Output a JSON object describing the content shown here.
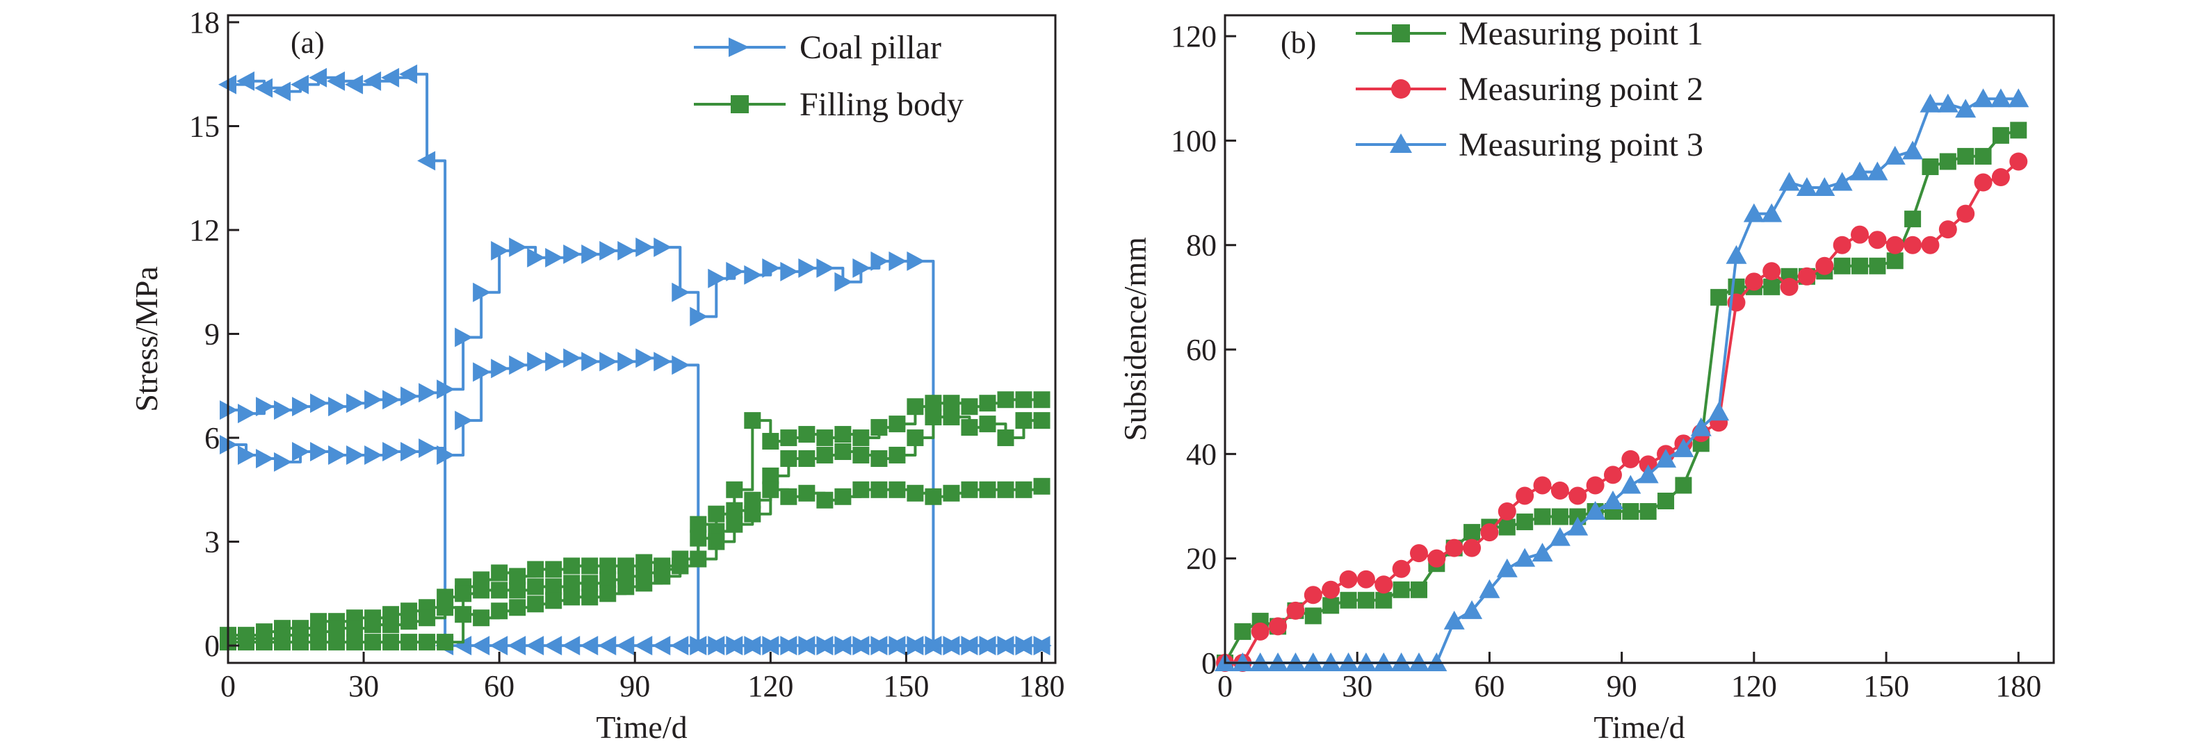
{
  "chart_data": [
    {
      "type": "line",
      "panel_label": "(a)",
      "xlabel": "Time/d",
      "ylabel": "Stress/MPa",
      "xlim": [
        0,
        183
      ],
      "ylim": [
        -0.5,
        18.2
      ],
      "xticks": [
        0,
        30,
        60,
        90,
        120,
        150,
        180
      ],
      "yticks": [
        0,
        3,
        6,
        9,
        12,
        15,
        18
      ],
      "legend_position": "top-right",
      "legend": [
        {
          "label": "Coal pillar",
          "color": "#4a8fd6",
          "marker": "triangle-right"
        },
        {
          "label": "Filling body",
          "color": "#3a8f3a",
          "marker": "square"
        }
      ],
      "series": [
        {
          "group": "Coal pillar",
          "color": "#4a8fd6",
          "marker": "triangle-left",
          "step": true,
          "x": [
            0,
            4,
            8,
            12,
            16,
            20,
            24,
            28,
            32,
            36,
            40,
            44,
            48,
            52,
            56,
            60,
            64,
            68,
            72,
            76,
            80,
            84,
            88,
            92,
            96,
            100,
            104,
            108,
            112,
            116,
            120,
            124,
            128,
            132,
            136,
            140,
            144,
            148,
            152,
            156,
            160,
            164,
            168,
            172,
            176,
            180
          ],
          "y": [
            16.2,
            16.3,
            16.1,
            16.0,
            16.2,
            16.4,
            16.3,
            16.2,
            16.3,
            16.4,
            16.5,
            14.0,
            0,
            0,
            0,
            0,
            0,
            0,
            0,
            0,
            0,
            0,
            0,
            0,
            0,
            0,
            0,
            0,
            0,
            0,
            0,
            0,
            0,
            0,
            0,
            0,
            0,
            0,
            0,
            0,
            0,
            0,
            0,
            0,
            0,
            0
          ]
        },
        {
          "group": "Coal pillar",
          "color": "#4a8fd6",
          "marker": "triangle-right",
          "step": true,
          "x": [
            0,
            4,
            8,
            12,
            16,
            20,
            24,
            28,
            32,
            36,
            40,
            44,
            48,
            52,
            56,
            60,
            64,
            68,
            72,
            76,
            80,
            84,
            88,
            92,
            96,
            100,
            104,
            108,
            112,
            116,
            120,
            124,
            128,
            132,
            136,
            140,
            144,
            148,
            152,
            156,
            160,
            164,
            168,
            172,
            176,
            180
          ],
          "y": [
            6.8,
            6.7,
            6.9,
            6.8,
            6.9,
            7.0,
            6.9,
            7.0,
            7.1,
            7.1,
            7.2,
            7.3,
            7.4,
            8.9,
            10.2,
            11.4,
            11.5,
            11.2,
            11.2,
            11.3,
            11.3,
            11.4,
            11.4,
            11.5,
            11.5,
            10.2,
            9.5,
            10.6,
            10.8,
            10.7,
            10.9,
            10.8,
            10.9,
            10.9,
            10.5,
            10.9,
            11.1,
            11.1,
            11.1,
            0,
            0,
            0,
            0,
            0,
            0,
            0
          ]
        },
        {
          "group": "Coal pillar",
          "color": "#4a8fd6",
          "marker": "triangle-right",
          "step": true,
          "x": [
            0,
            4,
            8,
            12,
            16,
            20,
            24,
            28,
            32,
            36,
            40,
            44,
            48,
            52,
            56,
            60,
            64,
            68,
            72,
            76,
            80,
            84,
            88,
            92,
            96,
            100,
            104,
            108,
            112,
            116,
            120,
            124,
            128,
            132,
            136,
            140,
            144,
            148,
            152,
            156,
            160,
            164,
            168,
            172,
            176,
            180
          ],
          "y": [
            5.8,
            5.5,
            5.4,
            5.3,
            5.6,
            5.6,
            5.5,
            5.5,
            5.5,
            5.6,
            5.6,
            5.7,
            5.5,
            6.5,
            7.9,
            8.0,
            8.1,
            8.2,
            8.2,
            8.3,
            8.2,
            8.2,
            8.2,
            8.3,
            8.2,
            8.1,
            0,
            0,
            0,
            0,
            0,
            0,
            0,
            0,
            0,
            0,
            0,
            0,
            0,
            0,
            0,
            0,
            0,
            0,
            0,
            0
          ]
        },
        {
          "group": "Filling body",
          "color": "#3a8f3a",
          "marker": "square",
          "step": true,
          "x": [
            0,
            4,
            8,
            12,
            16,
            20,
            24,
            28,
            32,
            36,
            40,
            44,
            48,
            52,
            56,
            60,
            64,
            68,
            72,
            76,
            80,
            84,
            88,
            92,
            96,
            100,
            104,
            108,
            112,
            116,
            120,
            124,
            128,
            132,
            136,
            140,
            144,
            148,
            152,
            156,
            160,
            164,
            168,
            172,
            176,
            180
          ],
          "y": [
            0.3,
            0.3,
            0.4,
            0.5,
            0.5,
            0.7,
            0.7,
            0.8,
            0.8,
            0.9,
            1.0,
            1.1,
            1.4,
            1.7,
            1.9,
            2.1,
            2.0,
            2.2,
            2.2,
            2.3,
            2.3,
            2.3,
            2.3,
            2.4,
            2.3,
            2.5,
            3.5,
            3.8,
            4.5,
            6.5,
            5.9,
            6.0,
            6.1,
            6.0,
            6.1,
            6.0,
            6.3,
            6.4,
            6.9,
            7.0,
            7.0,
            6.9,
            7.0,
            7.1,
            7.1,
            7.1
          ]
        },
        {
          "group": "Filling body",
          "color": "#3a8f3a",
          "marker": "square",
          "step": true,
          "x": [
            0,
            4,
            8,
            12,
            16,
            20,
            24,
            28,
            32,
            36,
            40,
            44,
            48,
            52,
            56,
            60,
            64,
            68,
            72,
            76,
            80,
            84,
            88,
            92,
            96,
            100,
            104,
            108,
            112,
            116,
            120,
            124,
            128,
            132,
            136,
            140,
            144,
            148,
            152,
            156,
            160,
            164,
            168,
            172,
            176,
            180
          ],
          "y": [
            0.2,
            0.2,
            0.2,
            0.3,
            0.3,
            0.4,
            0.5,
            0.5,
            0.6,
            0.6,
            0.7,
            0.8,
            1.1,
            1.5,
            1.6,
            1.6,
            1.6,
            1.7,
            1.7,
            1.8,
            1.8,
            1.9,
            2.0,
            2.1,
            2.2,
            2.3,
            3.1,
            3.3,
            3.9,
            4.2,
            4.9,
            5.4,
            5.4,
            5.5,
            5.6,
            5.5,
            5.4,
            5.5,
            6.0,
            6.6,
            6.6,
            6.3,
            6.4,
            6.0,
            6.5,
            6.5
          ]
        },
        {
          "group": "Filling body",
          "color": "#3a8f3a",
          "marker": "square",
          "step": true,
          "x": [
            0,
            4,
            8,
            12,
            16,
            20,
            24,
            28,
            32,
            36,
            40,
            44,
            48,
            52,
            56,
            60,
            64,
            68,
            72,
            76,
            80,
            84,
            88,
            92,
            96,
            100,
            104,
            108,
            112,
            116,
            120,
            124,
            128,
            132,
            136,
            140,
            144,
            148,
            152,
            156,
            160,
            164,
            168,
            172,
            176,
            180
          ],
          "y": [
            0.1,
            0.1,
            0.1,
            0.1,
            0.1,
            0.1,
            0.1,
            0.1,
            0.1,
            0.1,
            0.1,
            0.1,
            0.1,
            0.9,
            0.8,
            1.0,
            1.1,
            1.2,
            1.3,
            1.4,
            1.4,
            1.5,
            1.7,
            1.8,
            2.0,
            2.3,
            2.5,
            3.0,
            3.5,
            3.8,
            4.5,
            4.3,
            4.4,
            4.2,
            4.3,
            4.5,
            4.5,
            4.5,
            4.4,
            4.3,
            4.4,
            4.5,
            4.5,
            4.5,
            4.5,
            4.6
          ]
        }
      ]
    },
    {
      "type": "line",
      "panel_label": "(b)",
      "xlabel": "Time/d",
      "ylabel": "Subsidence/mm",
      "xlim": [
        0,
        188
      ],
      "ylim": [
        0,
        124
      ],
      "xticks": [
        0,
        30,
        60,
        90,
        120,
        150,
        180
      ],
      "yticks": [
        0,
        20,
        40,
        60,
        80,
        100,
        120
      ],
      "legend_position": "top-left",
      "legend": [
        {
          "label": "Measuring point 1",
          "color": "#3a8f3a",
          "marker": "square"
        },
        {
          "label": "Measuring point 2",
          "color": "#e8364b",
          "marker": "circle"
        },
        {
          "label": "Measuring point 3",
          "color": "#4a8fd6",
          "marker": "triangle-up"
        }
      ],
      "series": [
        {
          "name": "Measuring point 1",
          "color": "#3a8f3a",
          "marker": "square",
          "x": [
            0,
            4,
            8,
            12,
            16,
            20,
            24,
            28,
            32,
            36,
            40,
            44,
            48,
            52,
            56,
            60,
            64,
            68,
            72,
            76,
            80,
            84,
            88,
            92,
            96,
            100,
            104,
            108,
            112,
            116,
            120,
            124,
            128,
            132,
            136,
            140,
            144,
            148,
            152,
            156,
            160,
            164,
            168,
            172,
            176,
            180
          ],
          "y": [
            0,
            6,
            8,
            7,
            10,
            9,
            11,
            12,
            12,
            12,
            14,
            14,
            19,
            22,
            25,
            26,
            26,
            27,
            28,
            28,
            28,
            29,
            29,
            29,
            29,
            31,
            34,
            42,
            70,
            72,
            72,
            72,
            74,
            74,
            75,
            76,
            76,
            76,
            77,
            85,
            95,
            96,
            97,
            97,
            101,
            102
          ]
        },
        {
          "name": "Measuring point 2",
          "color": "#e8364b",
          "marker": "circle",
          "x": [
            0,
            4,
            8,
            12,
            16,
            20,
            24,
            28,
            32,
            36,
            40,
            44,
            48,
            52,
            56,
            60,
            64,
            68,
            72,
            76,
            80,
            84,
            88,
            92,
            96,
            100,
            104,
            108,
            112,
            116,
            120,
            124,
            128,
            132,
            136,
            140,
            144,
            148,
            152,
            156,
            160,
            164,
            168,
            172,
            176,
            180
          ],
          "y": [
            0,
            0,
            6,
            7,
            10,
            13,
            14,
            16,
            16,
            15,
            18,
            21,
            20,
            22,
            22,
            25,
            29,
            32,
            34,
            33,
            32,
            34,
            36,
            39,
            38,
            40,
            42,
            44,
            46,
            69,
            73,
            75,
            72,
            74,
            76,
            80,
            82,
            81,
            80,
            80,
            80,
            83,
            86,
            92,
            93,
            96
          ]
        },
        {
          "name": "Measuring point 3",
          "color": "#4a8fd6",
          "marker": "triangle-up",
          "x": [
            0,
            4,
            8,
            12,
            16,
            20,
            24,
            28,
            32,
            36,
            40,
            44,
            48,
            52,
            56,
            60,
            64,
            68,
            72,
            76,
            80,
            84,
            88,
            92,
            96,
            100,
            104,
            108,
            112,
            116,
            120,
            124,
            128,
            132,
            136,
            140,
            144,
            148,
            152,
            156,
            160,
            164,
            168,
            172,
            176,
            180
          ],
          "y": [
            0,
            0,
            0,
            0,
            0,
            0,
            0,
            0,
            0,
            0,
            0,
            0,
            0,
            8,
            10,
            14,
            18,
            20,
            21,
            24,
            26,
            29,
            31,
            34,
            36,
            39,
            41,
            45,
            48,
            78,
            86,
            86,
            92,
            91,
            91,
            92,
            94,
            94,
            97,
            98,
            107,
            107,
            106,
            108,
            108,
            108
          ]
        }
      ]
    }
  ]
}
